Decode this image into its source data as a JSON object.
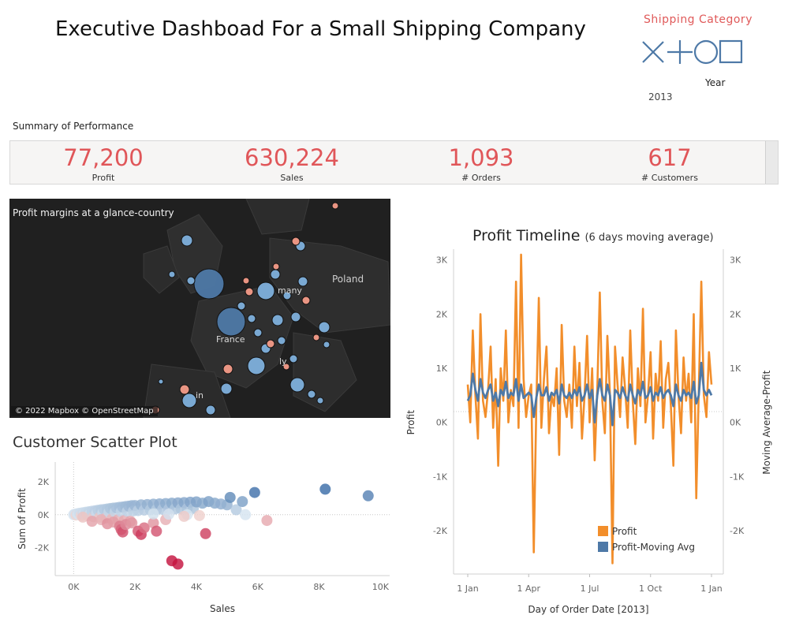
{
  "header": {
    "title": "Executive Dashboad For a Small Shipping Company"
  },
  "filters": {
    "shipping_category_label": "Shipping  Category",
    "shape_icons": [
      "x-icon",
      "plus-icon",
      "circle-icon",
      "square-icon"
    ],
    "year_label": "Year",
    "year_value": "2013"
  },
  "summary": {
    "label": "Summary of Performance",
    "kpis": [
      {
        "value": "77,200",
        "label": "Profit"
      },
      {
        "value": "630,224",
        "label": "Sales"
      },
      {
        "value": "1,093",
        "label": "# Orders"
      },
      {
        "value": "617",
        "label": "# Customers"
      }
    ]
  },
  "map": {
    "title": "Profit margins at a glance-country",
    "credit": "© 2022 Mapbox © OpenStreetMap",
    "place_labels": [
      "Poland",
      "France",
      "many",
      "ly",
      "in"
    ]
  },
  "colors": {
    "accent_red": "#e05659",
    "profit_orange": "#f28e2b",
    "moving_avg_blue": "#4e79a7"
  },
  "chart_data": [
    {
      "type": "scatter",
      "title": "Customer Scatter Plot",
      "xlabel": "Sales",
      "ylabel": "Sum of Profit",
      "xlim": [
        -600,
        10300
      ],
      "ylim": [
        -3700,
        3200
      ],
      "x_ticks": [
        "0K",
        "2K",
        "4K",
        "6K",
        "8K",
        "10K"
      ],
      "y_ticks": [
        "2K",
        "0K",
        "-2K"
      ],
      "points": [
        {
          "x": 0,
          "y": 0
        },
        {
          "x": 40,
          "y": 30
        },
        {
          "x": 80,
          "y": -20
        },
        {
          "x": 120,
          "y": 60
        },
        {
          "x": 160,
          "y": 10
        },
        {
          "x": 200,
          "y": 90
        },
        {
          "x": 250,
          "y": -40
        },
        {
          "x": 300,
          "y": 120
        },
        {
          "x": 350,
          "y": 40
        },
        {
          "x": 400,
          "y": 150
        },
        {
          "x": 450,
          "y": -60
        },
        {
          "x": 500,
          "y": 180
        },
        {
          "x": 550,
          "y": 70
        },
        {
          "x": 600,
          "y": 210
        },
        {
          "x": 650,
          "y": -120
        },
        {
          "x": 700,
          "y": 240
        },
        {
          "x": 750,
          "y": 90
        },
        {
          "x": 800,
          "y": 270
        },
        {
          "x": 850,
          "y": -150
        },
        {
          "x": 900,
          "y": 300
        },
        {
          "x": 950,
          "y": 120
        },
        {
          "x": 1000,
          "y": 320
        },
        {
          "x": 1050,
          "y": -200
        },
        {
          "x": 1100,
          "y": 350
        },
        {
          "x": 1150,
          "y": 150
        },
        {
          "x": 1200,
          "y": 380
        },
        {
          "x": 1250,
          "y": -250
        },
        {
          "x": 1300,
          "y": 400
        },
        {
          "x": 1350,
          "y": 170
        },
        {
          "x": 1400,
          "y": 420
        },
        {
          "x": 1450,
          "y": -300
        },
        {
          "x": 1500,
          "y": 450
        },
        {
          "x": 1550,
          "y": 190
        },
        {
          "x": 1600,
          "y": 470
        },
        {
          "x": 1650,
          "y": -350
        },
        {
          "x": 1700,
          "y": 500
        },
        {
          "x": 1750,
          "y": 210
        },
        {
          "x": 1800,
          "y": 520
        },
        {
          "x": 1850,
          "y": -400
        },
        {
          "x": 1900,
          "y": 550
        },
        {
          "x": 1950,
          "y": 230
        },
        {
          "x": 2000,
          "y": 560
        },
        {
          "x": 2100,
          "y": 250
        },
        {
          "x": 2200,
          "y": 600
        },
        {
          "x": 2300,
          "y": 280
        },
        {
          "x": 2400,
          "y": 620
        },
        {
          "x": 2500,
          "y": 300
        },
        {
          "x": 2600,
          "y": 640
        },
        {
          "x": 2700,
          "y": 310
        },
        {
          "x": 2800,
          "y": 660
        },
        {
          "x": 2900,
          "y": 330
        },
        {
          "x": 3000,
          "y": 680
        },
        {
          "x": 3100,
          "y": 340
        },
        {
          "x": 3200,
          "y": 700
        },
        {
          "x": 3300,
          "y": 350
        },
        {
          "x": 3400,
          "y": 720
        },
        {
          "x": 3500,
          "y": 360
        },
        {
          "x": 3600,
          "y": 740
        },
        {
          "x": 3700,
          "y": 370
        },
        {
          "x": 3800,
          "y": 760
        },
        {
          "x": 3900,
          "y": 380
        },
        {
          "x": 4000,
          "y": 780
        },
        {
          "x": 4200,
          "y": 700
        },
        {
          "x": 4400,
          "y": 800
        },
        {
          "x": 4600,
          "y": 700
        },
        {
          "x": 4800,
          "y": 650
        },
        {
          "x": 5000,
          "y": 600
        },
        {
          "x": 5100,
          "y": 1050
        },
        {
          "x": 5300,
          "y": 300
        },
        {
          "x": 5500,
          "y": 800
        },
        {
          "x": 5600,
          "y": 0
        },
        {
          "x": 5900,
          "y": 1350
        },
        {
          "x": 6300,
          "y": -350
        },
        {
          "x": 8200,
          "y": 1550
        },
        {
          "x": 9600,
          "y": 1150
        },
        {
          "x": 300,
          "y": -150
        },
        {
          "x": 600,
          "y": -400
        },
        {
          "x": 900,
          "y": -300
        },
        {
          "x": 1100,
          "y": -550
        },
        {
          "x": 1300,
          "y": -450
        },
        {
          "x": 1500,
          "y": -700
        },
        {
          "x": 1550,
          "y": -900
        },
        {
          "x": 1600,
          "y": -1050
        },
        {
          "x": 1700,
          "y": -600
        },
        {
          "x": 1900,
          "y": -500
        },
        {
          "x": 2100,
          "y": -1000
        },
        {
          "x": 2200,
          "y": -1200
        },
        {
          "x": 2300,
          "y": -800
        },
        {
          "x": 2600,
          "y": -500
        },
        {
          "x": 2700,
          "y": -1000
        },
        {
          "x": 3000,
          "y": -300
        },
        {
          "x": 3200,
          "y": -2800
        },
        {
          "x": 3400,
          "y": -3000
        },
        {
          "x": 3700,
          "y": 0
        },
        {
          "x": 4300,
          "y": -1150
        },
        {
          "x": 2600,
          "y": 50
        },
        {
          "x": 3100,
          "y": 30
        },
        {
          "x": 3600,
          "y": -100
        },
        {
          "x": 4100,
          "y": -50
        }
      ]
    },
    {
      "type": "line",
      "title": "Profit Timeline",
      "subtitle": "(6 days moving average)",
      "xlabel": "Day of Order Date [2013]",
      "ylabel": "Profit",
      "ylabel_right": "Moving Average-Profit",
      "ylim": [
        -3000,
        3000
      ],
      "ylim_right": [
        -3000,
        3000
      ],
      "x_ticks": [
        "1 Jan",
        "1 Apr",
        "1 Jul",
        "1 Oct",
        "1 Jan"
      ],
      "y_ticks": [
        "3K",
        "2K",
        "1K",
        "0K",
        "-1K",
        "-2K"
      ],
      "series": [
        {
          "name": "Profit",
          "color": "#f28e2b",
          "values": [
            500,
            -200,
            1500,
            300,
            -500,
            1800,
            200,
            -100,
            400,
            1200,
            -300,
            600,
            -1000,
            800,
            200,
            1500,
            -200,
            400,
            100,
            2400,
            -300,
            2900,
            600,
            -100,
            300,
            500,
            -2600,
            100,
            2100,
            -300,
            600,
            1200,
            -400,
            300,
            100,
            800,
            -800,
            1600,
            200,
            -100,
            500,
            -300,
            1200,
            100,
            900,
            -500,
            300,
            1400,
            -200,
            800,
            -900,
            400,
            2200,
            200,
            -400,
            1400,
            300,
            -2800,
            1200,
            500,
            -100,
            1000,
            400,
            -300,
            1500,
            200,
            -600,
            800,
            100,
            1900,
            -200,
            300,
            1100,
            -500,
            700,
            200,
            1300,
            -300,
            600,
            900,
            100,
            -1000,
            1500,
            300,
            -400,
            1000,
            200,
            700,
            -200,
            1800,
            -1600,
            400,
            2400,
            300,
            -100,
            1100,
            500
          ]
        },
        {
          "name": "Profit-Moving Avg",
          "color": "#4e79a7",
          "values": [
            200,
            300,
            700,
            400,
            200,
            600,
            350,
            250,
            400,
            500,
            200,
            350,
            100,
            400,
            300,
            550,
            250,
            350,
            300,
            600,
            200,
            500,
            250,
            300,
            350,
            300,
            -100,
            250,
            500,
            300,
            300,
            450,
            200,
            350,
            300,
            400,
            150,
            500,
            300,
            250,
            350,
            250,
            400,
            300,
            450,
            200,
            300,
            500,
            250,
            400,
            -200,
            300,
            600,
            300,
            200,
            500,
            300,
            -250,
            400,
            350,
            250,
            450,
            300,
            200,
            500,
            300,
            150,
            400,
            300,
            550,
            250,
            300,
            450,
            200,
            350,
            300,
            450,
            250,
            350,
            400,
            300,
            100,
            500,
            300,
            200,
            400,
            300,
            350,
            250,
            550,
            150,
            300,
            900,
            400,
            300,
            400,
            300
          ]
        }
      ]
    }
  ]
}
